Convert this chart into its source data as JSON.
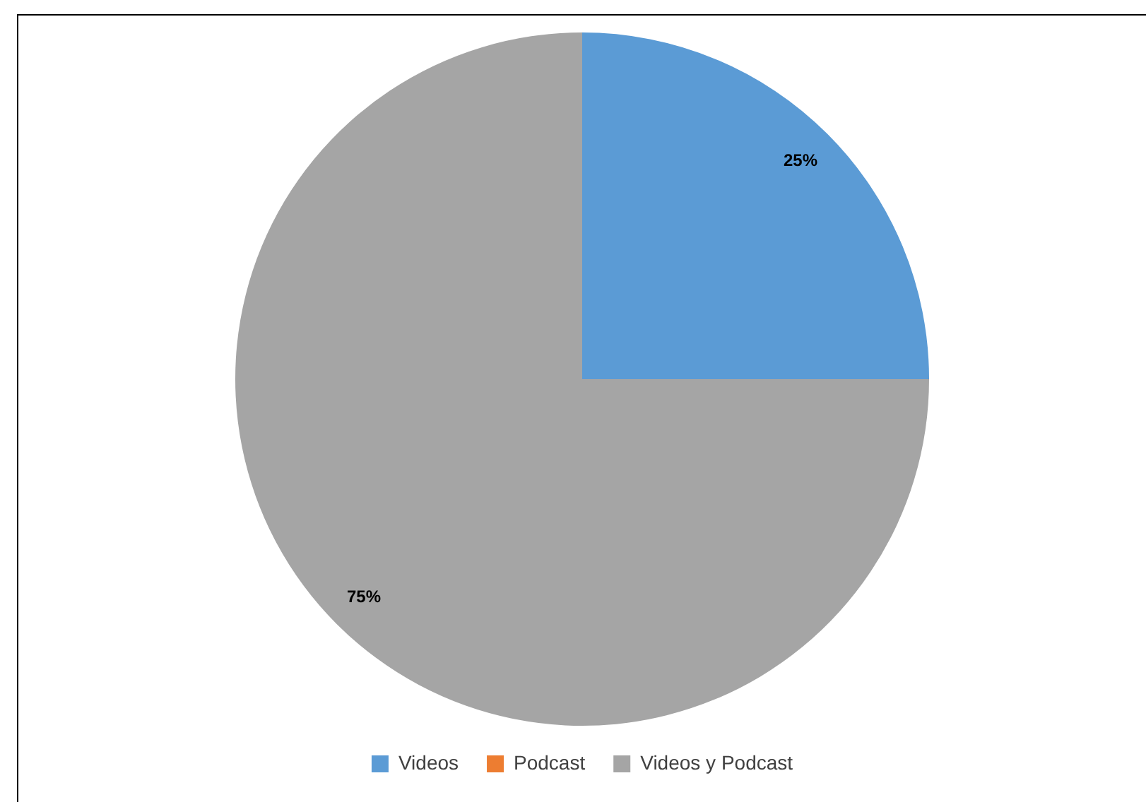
{
  "chart_data": {
    "type": "pie",
    "categories": [
      "Videos",
      "Podcast",
      "Videos y Podcast"
    ],
    "values": [
      25,
      0,
      75
    ],
    "colors": [
      "#5b9bd5",
      "#ed7d31",
      "#a5a5a5"
    ],
    "value_labels": [
      "25%",
      null,
      "75%"
    ],
    "legend": "bottom"
  }
}
